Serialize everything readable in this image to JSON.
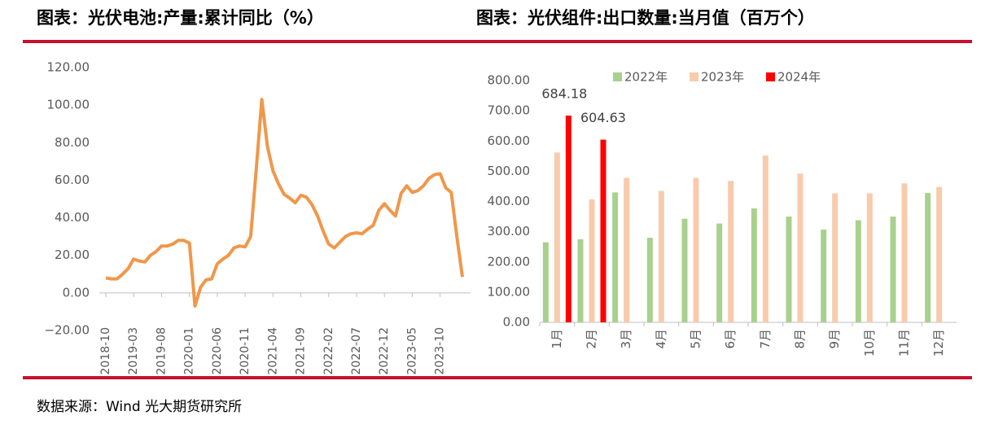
{
  "chart_data": [
    {
      "type": "line",
      "title": "图表：光伏电池:产量:累计同比（%）",
      "color": "#f0974a",
      "categories": [
        "2018-10",
        null,
        null,
        null,
        null,
        "2019-03",
        null,
        null,
        null,
        null,
        "2019-08",
        null,
        null,
        null,
        null,
        "2020-01",
        null,
        null,
        null,
        null,
        "2020-06",
        null,
        null,
        null,
        null,
        "2020-11",
        null,
        null,
        null,
        null,
        "2021-04",
        null,
        null,
        null,
        null,
        "2021-09",
        null,
        null,
        null,
        null,
        "2022-02",
        null,
        null,
        null,
        null,
        "2022-07",
        null,
        null,
        null,
        null,
        "2022-12",
        null,
        null,
        null,
        null,
        "2023-05",
        null,
        null,
        null,
        null,
        "2023-10",
        null,
        null,
        null,
        null
      ],
      "values": [
        8,
        7.5,
        7.5,
        10,
        13,
        18,
        17,
        16.5,
        20,
        22,
        25,
        25,
        26,
        28,
        28,
        26.5,
        -7,
        3,
        7,
        7.5,
        15.5,
        18,
        20,
        24,
        25,
        24.5,
        30,
        66,
        103,
        78,
        65,
        58,
        52.5,
        50.5,
        48,
        52,
        51,
        47,
        41,
        33,
        26,
        24,
        27,
        30,
        31.5,
        32,
        31.5,
        34,
        36,
        44,
        47.5,
        44,
        41,
        53,
        57,
        53.5,
        54.5,
        57,
        61,
        63,
        63.5,
        56,
        53.5,
        30,
        8.5
      ],
      "ylim": [
        -20,
        120
      ],
      "yticks": [
        {
          "value": -20,
          "label": "−20.00"
        },
        {
          "value": 0,
          "label": "0.00"
        },
        {
          "value": 20,
          "label": "20.00"
        },
        {
          "value": 40,
          "label": "40.00"
        },
        {
          "value": 60,
          "label": "60.00"
        },
        {
          "value": 80,
          "label": "80.00"
        },
        {
          "value": 100,
          "label": "100.00"
        },
        {
          "value": 120,
          "label": "120.00"
        }
      ],
      "grid": false
    },
    {
      "type": "bar",
      "title": "图表：光伏组件:出口数量:当月值（百万个）",
      "categories": [
        "1月",
        "2月",
        "3月",
        "4月",
        "5月",
        "6月",
        "7月",
        "8月",
        "9月",
        "10月",
        "11月",
        "12月"
      ],
      "series": [
        {
          "name": "2022年",
          "color": "#a9d18e",
          "values": [
            265,
            275,
            430,
            280,
            343,
            327,
            377,
            350,
            307,
            338,
            350,
            428
          ]
        },
        {
          "name": "2023年",
          "color": "#f8cbad",
          "values": [
            562,
            407,
            478,
            435,
            478,
            468,
            552,
            492,
            427,
            427,
            460,
            448
          ]
        },
        {
          "name": "2024年",
          "color": "#ff0000",
          "values": [
            684.18,
            604.63,
            null,
            null,
            null,
            null,
            null,
            null,
            null,
            null,
            null,
            null
          ]
        }
      ],
      "ylim": [
        0,
        800
      ],
      "yticks": [
        {
          "value": 0,
          "label": "0.00"
        },
        {
          "value": 100,
          "label": "100.00"
        },
        {
          "value": 200,
          "label": "200.00"
        },
        {
          "value": 300,
          "label": "300.00"
        },
        {
          "value": 400,
          "label": "400.00"
        },
        {
          "value": 500,
          "label": "500.00"
        },
        {
          "value": 600,
          "label": "600.00"
        },
        {
          "value": 700,
          "label": "700.00"
        },
        {
          "value": 800,
          "label": "800.00"
        }
      ],
      "legend": "top",
      "grid": false
    }
  ],
  "source": "数据来源：Wind 光大期货研究所"
}
